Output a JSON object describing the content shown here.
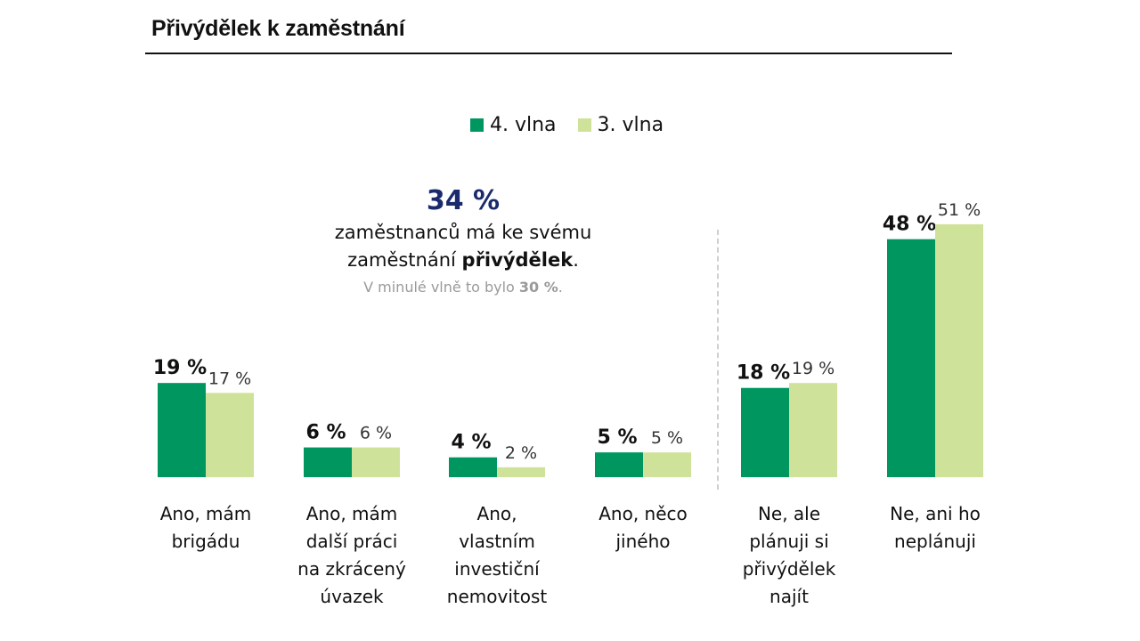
{
  "header": {
    "title": "Přivýdělek k zaměstnání"
  },
  "legend": {
    "items": [
      {
        "label": "4. vlna",
        "color": "#009660"
      },
      {
        "label": "3. vlna",
        "color": "#cfe29a"
      }
    ]
  },
  "callout": {
    "big_value": "34 %",
    "line1": "zaměstnanců má ke svému",
    "line2_prefix": "zaměstnání ",
    "line2_bold": "přivýdělek",
    "line2_suffix": ".",
    "sub_prefix": "V minulé vlně to bylo ",
    "sub_bold": "30 %",
    "sub_suffix": "."
  },
  "colors": {
    "wave4": "#009660",
    "wave3": "#cfe29a",
    "accent": "#1a2a6c"
  },
  "chart_data": {
    "type": "bar",
    "title": "Přivýdělek k zaměstnání",
    "xlabel": "",
    "ylabel": "",
    "ylim": [
      0,
      51
    ],
    "grid": false,
    "legend_position": "top-center",
    "categories": [
      [
        "Ano, mám",
        "brigádu"
      ],
      [
        "Ano, mám",
        "další práci",
        "na zkrácený",
        "úvazek"
      ],
      [
        "Ano,",
        "vlastním",
        "investiční",
        "nemovitost"
      ],
      [
        "Ano, něco",
        "jiného"
      ],
      [
        "Ne, ale",
        "plánuji si",
        "přivýdělek",
        "najít"
      ],
      [
        "Ne, ani ho",
        "neplánuji"
      ]
    ],
    "series": [
      {
        "name": "4. vlna",
        "values": [
          19,
          6,
          4,
          5,
          18,
          48
        ],
        "labels": [
          "19 %",
          "6 %",
          "4 %",
          "5 %",
          "18 %",
          "48 %"
        ]
      },
      {
        "name": "3. vlna",
        "values": [
          17,
          6,
          2,
          5,
          19,
          51
        ],
        "labels": [
          "17 %",
          "6 %",
          "2 %",
          "5 %",
          "19 %",
          "51 %"
        ]
      }
    ]
  }
}
